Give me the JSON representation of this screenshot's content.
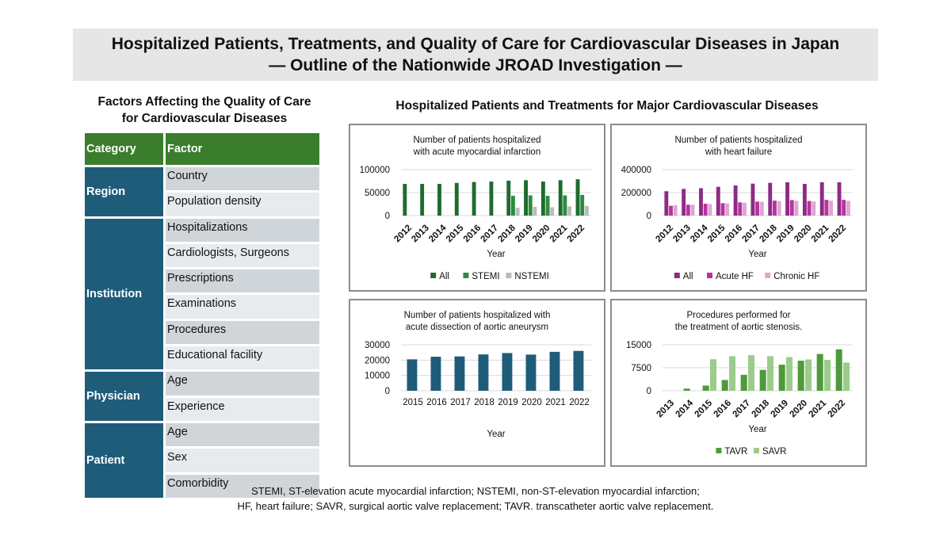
{
  "header": {
    "title_line1": "Hospitalized Patients, Treatments, and Quality of Care for Cardiovascular Diseases in Japan",
    "title_line2": "— Outline of the Nationwide JROAD Investigation —"
  },
  "factors_section": {
    "title_line1": "Factors Affecting the Quality of Care",
    "title_line2": "for Cardiovascular Diseases",
    "col_category": "Category",
    "col_factor": "Factor",
    "groups": [
      {
        "category": "Region",
        "factors": [
          "Country",
          "Population density"
        ]
      },
      {
        "category": "Institution",
        "factors": [
          "Hospitalizations",
          "Cardiologists, Surgeons",
          "Prescriptions",
          "Examinations",
          "Procedures",
          "Educational facility"
        ]
      },
      {
        "category": "Physician",
        "factors": [
          "Age",
          "Experience"
        ]
      },
      {
        "category": "Patient",
        "factors": [
          "Age",
          "Sex",
          "Comorbidity"
        ]
      }
    ]
  },
  "charts_section": {
    "title": "Hospitalized Patients and Treatments for Major Cardiovascular Diseases"
  },
  "chart_data": [
    {
      "type": "bar",
      "title_lines": [
        "Number of patients hospitalized",
        "with acute myocardial infarction"
      ],
      "xlabel": "Year",
      "categories": [
        "2012",
        "2013",
        "2014",
        "2015",
        "2016",
        "2017",
        "2018",
        "2019",
        "2020",
        "2021",
        "2022"
      ],
      "ylim": [
        0,
        100000
      ],
      "yticks": [
        0,
        50000,
        100000
      ],
      "rotated_labels": true,
      "series": [
        {
          "name": "All",
          "color": "#1e6b2e",
          "values": [
            69000,
            69000,
            69000,
            71000,
            73000,
            74000,
            76000,
            77000,
            74000,
            77000,
            79000
          ]
        },
        {
          "name": "STEMI",
          "color": "#2e8b3e",
          "values": [
            null,
            null,
            null,
            null,
            null,
            null,
            43000,
            44000,
            43000,
            44000,
            45000
          ]
        },
        {
          "name": "NSTEMI",
          "color": "#b9bcbc",
          "values": [
            null,
            null,
            null,
            null,
            null,
            null,
            17000,
            19000,
            18000,
            20000,
            21000
          ]
        }
      ]
    },
    {
      "type": "bar",
      "title_lines": [
        "Number of patients hospitalized",
        "with heart failure"
      ],
      "xlabel": "Year",
      "categories": [
        "2012",
        "2013",
        "2014",
        "2015",
        "2016",
        "2017",
        "2018",
        "2019",
        "2020",
        "2021",
        "2022"
      ],
      "ylim": [
        0,
        400000
      ],
      "yticks": [
        0,
        200000,
        400000
      ],
      "rotated_labels": true,
      "series": [
        {
          "name": "All",
          "color": "#8e2a84",
          "values": [
            212000,
            232000,
            238000,
            250000,
            262000,
            278000,
            285000,
            290000,
            276000,
            290000,
            290000
          ]
        },
        {
          "name": "Acute HF",
          "color": "#b8339f",
          "values": [
            85000,
            95000,
            103000,
            108000,
            115000,
            122000,
            130000,
            135000,
            127000,
            137000,
            137000
          ]
        },
        {
          "name": "Chronic HF",
          "color": "#dca6d3",
          "values": [
            90000,
            95000,
            100000,
            106000,
            112000,
            120000,
            126000,
            128000,
            123000,
            130000,
            128000
          ]
        }
      ]
    },
    {
      "type": "bar",
      "title_lines": [
        "Number of patients hospitalized with",
        "acute dissection of aortic aneurysm"
      ],
      "xlabel": "Year",
      "categories": [
        "2015",
        "2016",
        "2017",
        "2018",
        "2019",
        "2020",
        "2021",
        "2022"
      ],
      "ylim": [
        0,
        30000
      ],
      "yticks": [
        0,
        10000,
        20000,
        30000
      ],
      "rotated_labels": false,
      "series": [
        {
          "name": "Patients",
          "color": "#1f5c7a",
          "values": [
            20500,
            22200,
            22400,
            23700,
            24600,
            23600,
            25400,
            26000
          ]
        }
      ]
    },
    {
      "type": "bar",
      "title_lines": [
        "Procedures performed for",
        "the treatment of aortic stenosis."
      ],
      "xlabel": "Year",
      "categories": [
        "2013",
        "2014",
        "2015",
        "2016",
        "2017",
        "2018",
        "2019",
        "2020",
        "2021",
        "2022"
      ],
      "ylim": [
        0,
        15000
      ],
      "yticks": [
        0,
        7500,
        15000
      ],
      "rotated_labels": true,
      "series": [
        {
          "name": "TAVR",
          "color": "#4f9a3a",
          "values": [
            0,
            700,
            1700,
            3500,
            5200,
            6800,
            8500,
            9800,
            12000,
            13500
          ]
        },
        {
          "name": "SAVR",
          "color": "#9ccc8c",
          "values": [
            0,
            0,
            10300,
            11300,
            11600,
            11300,
            11000,
            10200,
            10100,
            9200
          ]
        }
      ]
    }
  ],
  "footnote": {
    "line1": "STEMI, ST-elevation acute myocardial infarction; NSTEMI, non-ST-elevation myocardial infarction;",
    "line2": "HF, heart failure; SAVR, surgical aortic valve replacement; TAVR. transcatheter aortic valve replacement."
  }
}
